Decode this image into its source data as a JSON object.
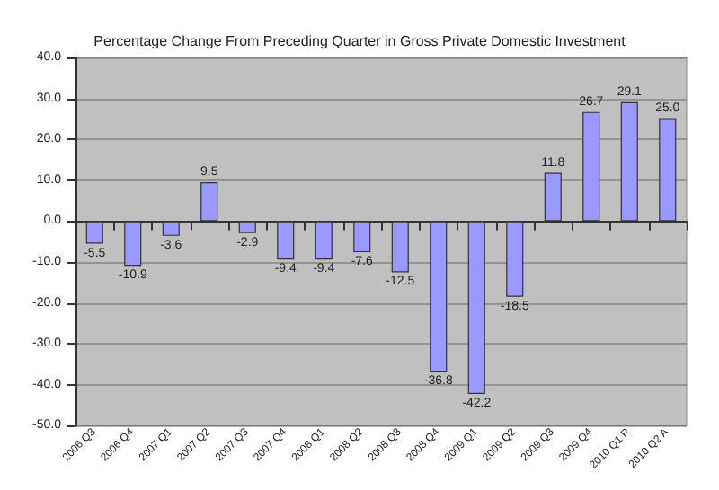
{
  "chart_data": {
    "type": "bar",
    "title": "Percentage Change From Preceding Quarter in Gross Private Domestic Investment",
    "categories": [
      "2006 Q3",
      "2006 Q4",
      "2007 Q1",
      "2007 Q2",
      "2007 Q3",
      "2007 Q4",
      "2008 Q1",
      "2008 Q2",
      "2008 Q3",
      "2008 Q4",
      "2009 Q1",
      "2009 Q2",
      "2009 Q3",
      "2009 Q4",
      "2010 Q1 R",
      "2010 Q2 A"
    ],
    "values": [
      -5.5,
      -10.9,
      -3.6,
      9.5,
      -2.9,
      -9.4,
      -9.4,
      -7.6,
      -12.5,
      -36.8,
      -42.2,
      -18.5,
      11.8,
      26.7,
      29.1,
      25.0
    ],
    "value_labels": [
      "-5.5",
      "-10.9",
      "-3.6",
      "9.5",
      "-2.9",
      "-9.4",
      "-9.4",
      "-7.6",
      "-12.5",
      "-36.8",
      "-42.2",
      "-18.5",
      "11.8",
      "26.7",
      "29.1",
      "25.0"
    ],
    "color": "#9999ff",
    "ylim": [
      -50,
      40
    ],
    "yticks": [
      {
        "value": -50,
        "label": "-50.0"
      },
      {
        "value": -40,
        "label": "-40.0"
      },
      {
        "value": -30,
        "label": "-30.0"
      },
      {
        "value": -20,
        "label": "-20.0"
      },
      {
        "value": -10,
        "label": "-10.0"
      },
      {
        "value": 0,
        "label": "0.0"
      },
      {
        "value": 10,
        "label": "10.0"
      },
      {
        "value": 20,
        "label": "20.0"
      },
      {
        "value": 30,
        "label": "30.0"
      },
      {
        "value": 40,
        "label": "40.0"
      }
    ],
    "grid": "y"
  }
}
